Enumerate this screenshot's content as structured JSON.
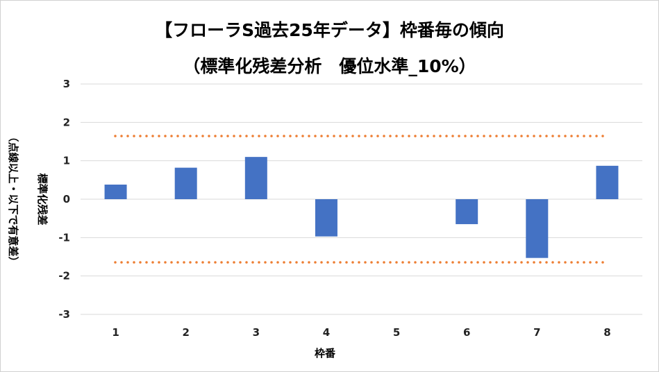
{
  "chart_data": {
    "type": "bar",
    "title": "【フローラS過去25年データ】枠番毎の傾向",
    "subtitle": "（標準化残差分析　優位水準_10%）",
    "xlabel": "枠番",
    "ylabel": "標準化残差",
    "ylabel_note": "（点線以上・以下で有意差）",
    "categories": [
      "1",
      "2",
      "3",
      "4",
      "5",
      "6",
      "7",
      "8"
    ],
    "values": [
      0.38,
      0.82,
      1.1,
      -0.97,
      0,
      -0.65,
      -1.53,
      0.87
    ],
    "ylim": [
      -3,
      3
    ],
    "yticks": [
      "3",
      "2",
      "1",
      "0",
      "-1",
      "-2",
      "-3"
    ],
    "threshold_lines": [
      1.645,
      -1.645
    ],
    "grid": true,
    "legend": "none",
    "colors": {
      "bar": "#4472C4",
      "threshold": "#ED7D31",
      "grid": "#D9D9D9"
    }
  }
}
